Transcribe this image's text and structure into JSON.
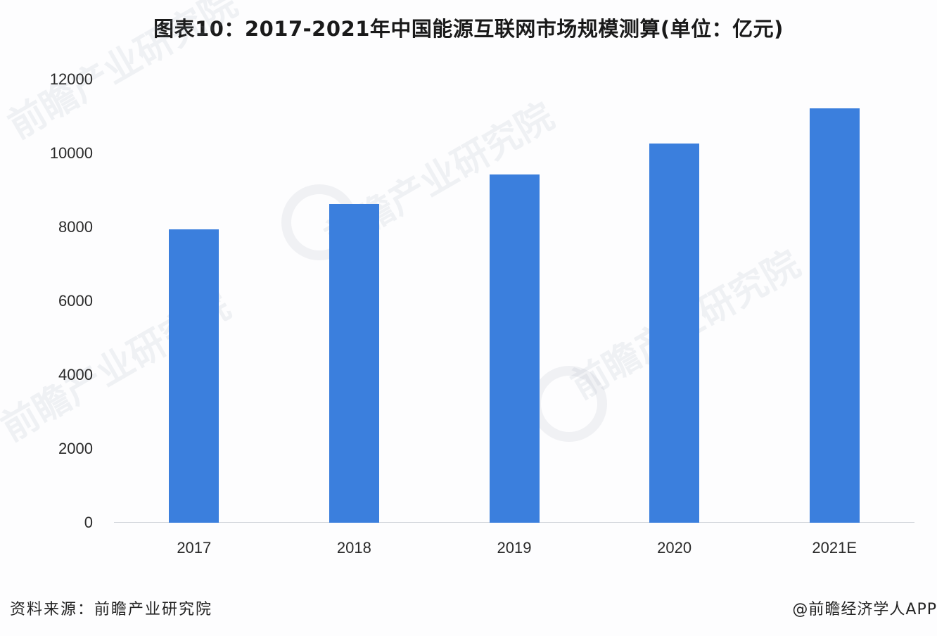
{
  "header": {
    "title": "图表10：2017-2021年中国能源互联网市场规模测算(单位：亿元)"
  },
  "footer": {
    "source": "资料来源：前瞻产业研究院",
    "credit": "@前瞻经济学人APP"
  },
  "watermark": {
    "text": "前瞻产业研究院"
  },
  "colors": {
    "bar": "#3b7fdd",
    "axis": "#d0d4da"
  },
  "chart_data": {
    "type": "bar",
    "title": "图表10：2017-2021年中国能源互联网市场规模测算(单位：亿元)",
    "xlabel": "",
    "ylabel": "亿元",
    "categories": [
      "2017",
      "2018",
      "2019",
      "2020",
      "2021E"
    ],
    "values": [
      7940,
      8630,
      9430,
      10270,
      11220
    ],
    "ylim": [
      0,
      12000
    ],
    "yticks": [
      "0",
      "2000",
      "4000",
      "6000",
      "8000",
      "10000",
      "12000"
    ],
    "grid": false,
    "legend": null
  }
}
